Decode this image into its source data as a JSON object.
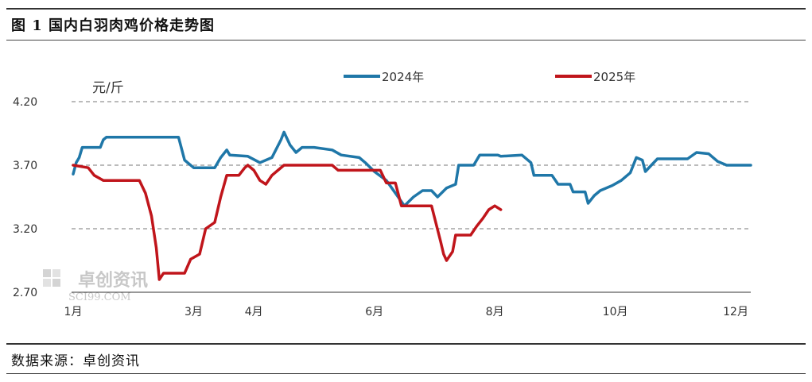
{
  "title": "图 1  国内白羽肉鸡价格走势图",
  "source": "数据来源：卓创资讯",
  "watermark": {
    "name": "卓创资讯",
    "url": "SCI99.COM"
  },
  "chart_data": {
    "type": "line",
    "ylabel": "元/斤",
    "ylim": [
      2.7,
      4.2
    ],
    "yticks": [
      "4.20",
      "3.70",
      "3.20",
      "2.70"
    ],
    "ytick_values": [
      4.2,
      3.7,
      3.2,
      2.7
    ],
    "xlim": [
      1,
      12.25
    ],
    "xticks": [
      "1月",
      "3月",
      "4月",
      "6月",
      "8月",
      "10月",
      "12月"
    ],
    "xtick_values": [
      1,
      3,
      4,
      6,
      8,
      10,
      12
    ],
    "grid": "horizontal dashed",
    "legend_position": "top",
    "series": [
      {
        "name": "2024年",
        "color": "#1f77a8",
        "points": [
          [
            1.0,
            3.63
          ],
          [
            1.05,
            3.72
          ],
          [
            1.1,
            3.76
          ],
          [
            1.15,
            3.84
          ],
          [
            1.45,
            3.84
          ],
          [
            1.5,
            3.9
          ],
          [
            1.55,
            3.92
          ],
          [
            2.75,
            3.92
          ],
          [
            2.85,
            3.74
          ],
          [
            3.0,
            3.68
          ],
          [
            3.35,
            3.68
          ],
          [
            3.45,
            3.76
          ],
          [
            3.55,
            3.82
          ],
          [
            3.6,
            3.78
          ],
          [
            3.9,
            3.77
          ],
          [
            4.1,
            3.72
          ],
          [
            4.3,
            3.76
          ],
          [
            4.45,
            3.9
          ],
          [
            4.5,
            3.96
          ],
          [
            4.6,
            3.86
          ],
          [
            4.7,
            3.8
          ],
          [
            4.8,
            3.84
          ],
          [
            5.0,
            3.84
          ],
          [
            5.3,
            3.82
          ],
          [
            5.45,
            3.78
          ],
          [
            5.75,
            3.76
          ],
          [
            5.85,
            3.72
          ],
          [
            6.0,
            3.65
          ],
          [
            6.2,
            3.58
          ],
          [
            6.35,
            3.48
          ],
          [
            6.5,
            3.38
          ],
          [
            6.65,
            3.45
          ],
          [
            6.8,
            3.5
          ],
          [
            6.95,
            3.5
          ],
          [
            7.05,
            3.45
          ],
          [
            7.2,
            3.52
          ],
          [
            7.35,
            3.55
          ],
          [
            7.4,
            3.7
          ],
          [
            7.65,
            3.7
          ],
          [
            7.75,
            3.78
          ],
          [
            8.05,
            3.78
          ],
          [
            8.1,
            3.77
          ],
          [
            8.45,
            3.78
          ],
          [
            8.6,
            3.72
          ],
          [
            8.65,
            3.62
          ],
          [
            8.95,
            3.62
          ],
          [
            9.05,
            3.55
          ],
          [
            9.25,
            3.55
          ],
          [
            9.3,
            3.49
          ],
          [
            9.5,
            3.49
          ],
          [
            9.55,
            3.4
          ],
          [
            9.65,
            3.46
          ],
          [
            9.75,
            3.5
          ],
          [
            9.95,
            3.54
          ],
          [
            10.1,
            3.58
          ],
          [
            10.25,
            3.64
          ],
          [
            10.35,
            3.76
          ],
          [
            10.45,
            3.74
          ],
          [
            10.5,
            3.65
          ],
          [
            10.6,
            3.7
          ],
          [
            10.7,
            3.75
          ],
          [
            11.2,
            3.75
          ],
          [
            11.35,
            3.8
          ],
          [
            11.55,
            3.79
          ],
          [
            11.7,
            3.73
          ],
          [
            11.85,
            3.7
          ],
          [
            12.15,
            3.7
          ],
          [
            12.25,
            3.7
          ]
        ]
      },
      {
        "name": "2025年",
        "color": "#c0151b",
        "points": [
          [
            1.0,
            3.7
          ],
          [
            1.25,
            3.68
          ],
          [
            1.35,
            3.62
          ],
          [
            1.5,
            3.58
          ],
          [
            2.1,
            3.58
          ],
          [
            2.2,
            3.48
          ],
          [
            2.3,
            3.3
          ],
          [
            2.38,
            3.05
          ],
          [
            2.43,
            2.8
          ],
          [
            2.5,
            2.85
          ],
          [
            2.85,
            2.85
          ],
          [
            2.95,
            2.96
          ],
          [
            3.1,
            3.0
          ],
          [
            3.2,
            3.2
          ],
          [
            3.35,
            3.25
          ],
          [
            3.45,
            3.45
          ],
          [
            3.55,
            3.62
          ],
          [
            3.75,
            3.62
          ],
          [
            3.85,
            3.68
          ],
          [
            3.9,
            3.7
          ],
          [
            4.0,
            3.66
          ],
          [
            4.1,
            3.58
          ],
          [
            4.2,
            3.55
          ],
          [
            4.3,
            3.62
          ],
          [
            4.4,
            3.66
          ],
          [
            4.5,
            3.7
          ],
          [
            5.3,
            3.7
          ],
          [
            5.4,
            3.66
          ],
          [
            6.1,
            3.66
          ],
          [
            6.2,
            3.56
          ],
          [
            6.35,
            3.56
          ],
          [
            6.45,
            3.38
          ],
          [
            6.6,
            3.38
          ],
          [
            6.7,
            3.38
          ],
          [
            6.85,
            3.38
          ],
          [
            6.95,
            3.38
          ],
          [
            7.1,
            3.1
          ],
          [
            7.15,
            3.0
          ],
          [
            7.2,
            2.95
          ],
          [
            7.3,
            3.02
          ],
          [
            7.35,
            3.15
          ],
          [
            7.6,
            3.15
          ],
          [
            7.7,
            3.22
          ],
          [
            7.8,
            3.28
          ],
          [
            7.9,
            3.35
          ],
          [
            8.0,
            3.38
          ],
          [
            8.1,
            3.35
          ]
        ]
      }
    ]
  }
}
